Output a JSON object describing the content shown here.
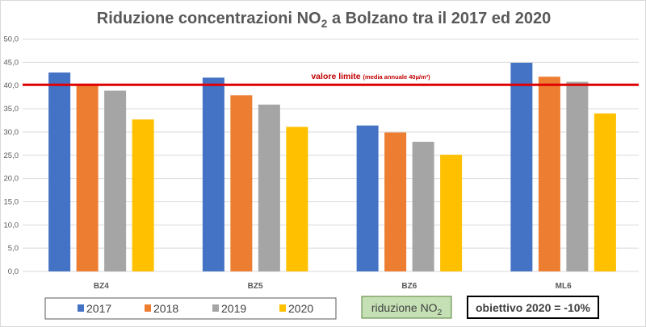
{
  "chart_data": {
    "type": "bar",
    "title": "Riduzione concentrazioni NO2 a Bolzano tra il 2017 ed 2020",
    "title_parts": {
      "pre": "Riduzione concentrazioni NO",
      "sub": "2",
      "post": " a Bolzano tra il 2017 ed 2020"
    },
    "categories": [
      "BZ4",
      "BZ5",
      "BZ6",
      "ML6"
    ],
    "series": [
      {
        "name": "2017",
        "color": "#4472c4",
        "values": [
          42.8,
          41.7,
          31.4,
          44.9
        ]
      },
      {
        "name": "2018",
        "color": "#ed7d31",
        "values": [
          40.0,
          37.9,
          29.9,
          41.9
        ]
      },
      {
        "name": "2019",
        "color": "#a5a5a5",
        "values": [
          38.9,
          35.9,
          27.9,
          40.8
        ]
      },
      {
        "name": "2020",
        "color": "#ffc000",
        "values": [
          32.7,
          31.1,
          25.1,
          34.0
        ]
      }
    ],
    "ylim": [
      0,
      50
    ],
    "yticks": [
      "0,0",
      "5,0",
      "10,0",
      "15,0",
      "20,0",
      "25,0",
      "30,0",
      "35,0",
      "40,0",
      "45,0",
      "50,0"
    ],
    "grid": true,
    "legend_placement": "bottom-left",
    "reference_line": {
      "value": 40,
      "color": "#e00000",
      "label_bold": "valore limite",
      "label_note": "(media annuale  40µ/m³)"
    },
    "annotations": {
      "box1": {
        "pre": "riduzione NO",
        "sub": "2"
      },
      "box2": "obiettivo 2020 = -10%"
    }
  }
}
